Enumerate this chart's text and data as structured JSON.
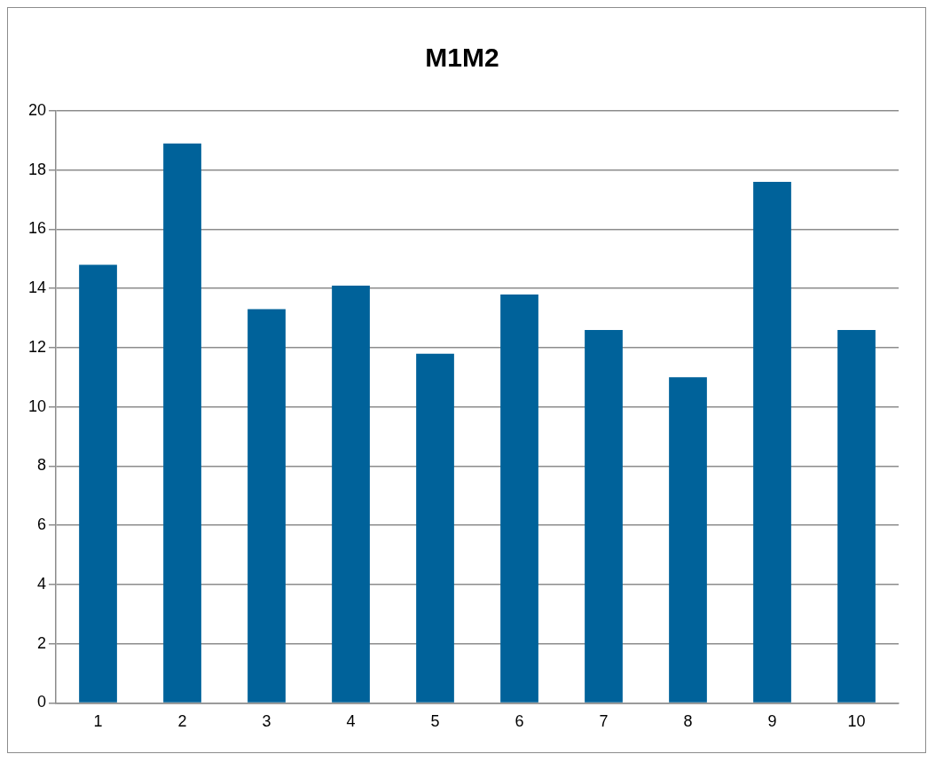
{
  "chart_data": {
    "type": "bar",
    "title": "M1M2",
    "categories": [
      "1",
      "2",
      "3",
      "4",
      "5",
      "6",
      "7",
      "8",
      "9",
      "10"
    ],
    "values": [
      14.8,
      18.9,
      13.3,
      14.1,
      11.8,
      13.8,
      12.6,
      11.0,
      17.6,
      12.6
    ],
    "color": "#00629a",
    "ylim": [
      0,
      20
    ],
    "yticks": [
      0,
      2,
      4,
      6,
      8,
      10,
      12,
      14,
      16,
      18,
      20
    ],
    "grid": "y",
    "legend": false
  }
}
